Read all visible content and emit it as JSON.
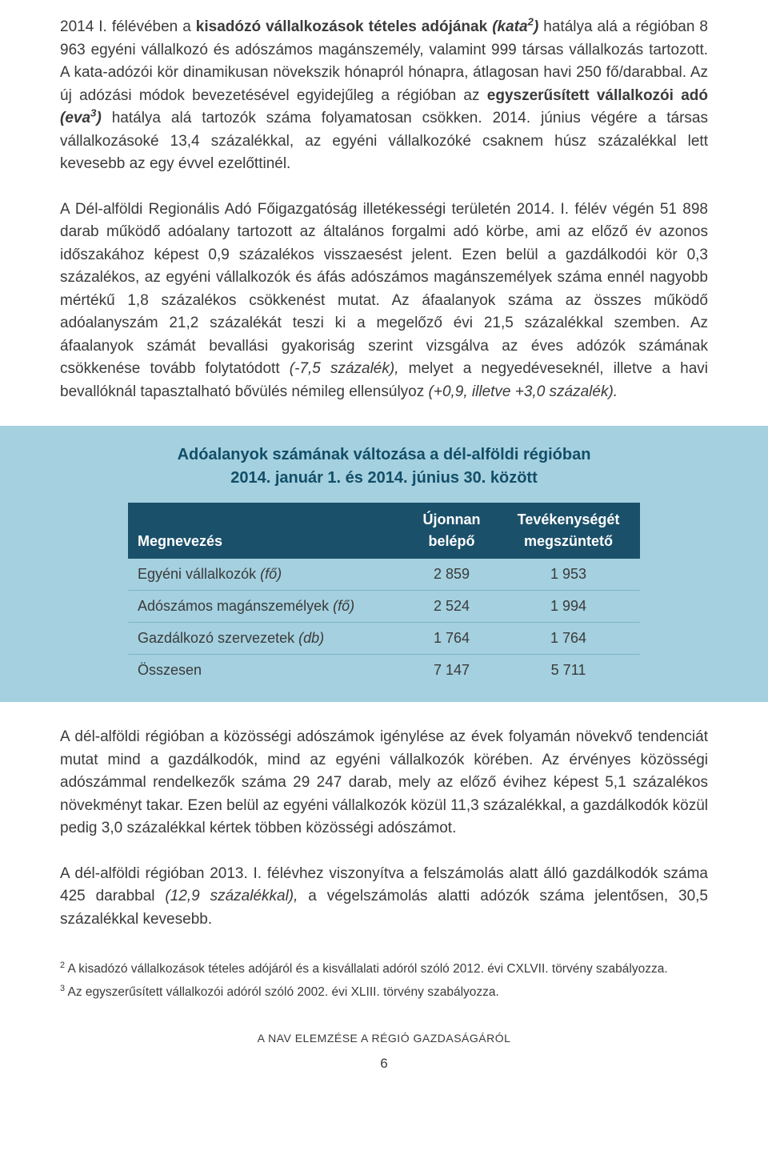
{
  "paragraphs": {
    "p1_a": "2014 I. félévében a ",
    "p1_b": "kisadózó vállalkozások tételes adójának ",
    "p1_c_it": "(kata",
    "p1_sup2": "2",
    "p1_c_it2": ")",
    "p1_d": " hatálya alá a régióban 8 963 egyéni vállalkozó és adószámos magánszemély, valamint 999 társas vállalkozás tartozott. A kata-adózói kör dinamikusan növekszik hónapról hónapra, átlagosan havi 250 fő/darabbal. Az új adózási módok bevezetésével egyidejűleg a régióban az ",
    "p1_e": "egyszerűsített vállalkozói adó ",
    "p1_f_it": "(eva",
    "p1_sup3": "3",
    "p1_f_it2": ")",
    "p1_g": " hatálya alá tartozók száma folyamatosan csökken. 2014. június végére a társas vállalkozásoké 13,4 százalékkal, az egyéni vállalkozóké csaknem húsz százalékkal lett kevesebb az egy évvel ezelőttinél.",
    "p2": "A Dél-alföldi Regionális Adó Főigazgatóság illetékességi területén 2014. I. félév végén 51 898 darab működő adóalany tartozott az általános forgalmi adó körbe, ami az előző év azonos időszakához képest 0,9 százalékos visszaesést jelent. Ezen belül a gazdálkodói kör 0,3 százalékos, az egyéni vállalkozók és áfás adószámos magánszemélyek száma ennél nagyobb mértékű 1,8 százalékos csökkenést mutat. Az áfaalanyok száma az összes működő adóalanyszám 21,2 százalékát teszi ki a megelőző évi 21,5 százalékkal szemben. Az áfaalanyok számát bevallási gyakoriság szerint vizsgálva az éves adózók számának csökkenése tovább folytatódott ",
    "p2_it1": "(-7,5 százalék),",
    "p2_b": " melyet a negyedéveseknél, illetve a havi bevallóknál tapasztalható bővülés némileg ellensúlyoz ",
    "p2_it2": "(+0,9, illetve +3,0 százalék).",
    "p3": "A dél-alföldi régióban a közösségi adószámok igénylése az évek folyamán növekvő tendenciát mutat mind a gazdálkodók, mind az egyéni vállalkozók körében. Az érvényes közösségi adószámmal rendelkezők száma 29 247 darab, mely az előző évihez képest 5,1 százalékos növekményt takar. Ezen belül az egyéni vállalkozók közül 11,3 százalékkal, a gazdálkodók közül pedig 3,0 százalékkal kértek többen közösségi adószámot.",
    "p4_a": "A dél-alföldi régióban 2013. I. félévhez viszonyítva a felszámolás alatt álló gazdálkodók száma 425 darabbal ",
    "p4_it": "(12,9 százalékkal),",
    "p4_b": " a végelszámolás alatti adózók száma jelentősen, 30,5 százalékkal kevesebb."
  },
  "table": {
    "title_line1": "Adóalanyok számának változása a dél-alföldi régióban",
    "title_line2": "2014. január 1. és 2014. június 30. között",
    "header_bg": "#1b506a",
    "header_fg": "#ffffff",
    "box_bg": "#a4d0df",
    "row_border": "#7fb5c7",
    "columns": {
      "c0": "Megnevezés",
      "c1a": "Újonnan",
      "c1b": "belépő",
      "c2a": "Tevékenységét",
      "c2b": "megszüntető"
    },
    "rows": [
      {
        "label_a": "Egyéni vállalkozók ",
        "label_it": "(fő)",
        "v1": "2 859",
        "v2": "1 953"
      },
      {
        "label_a": "Adószámos magánszemélyek ",
        "label_it": "(fő)",
        "v1": "2 524",
        "v2": "1 994"
      },
      {
        "label_a": "Gazdálkozó szervezetek ",
        "label_it": "(db)",
        "v1": "1 764",
        "v2": "1 764"
      },
      {
        "label_a": "Összesen",
        "label_it": "",
        "v1": "7 147",
        "v2": "5 711"
      }
    ]
  },
  "footnotes": {
    "f2_sup": "2",
    "f2": " A kisadózó vállalkozások tételes adójáról és a kisvállalati adóról szóló 2012. évi CXLVII. törvény szabályozza.",
    "f3_sup": "3",
    "f3": " Az egyszerűsített vállalkozói adóról szóló 2002. évi XLIII. törvény szabályozza."
  },
  "footer": {
    "text": "A NAV ELEMZÉSE A RÉGIÓ GAZDASÁGÁRÓL",
    "page": "6"
  }
}
